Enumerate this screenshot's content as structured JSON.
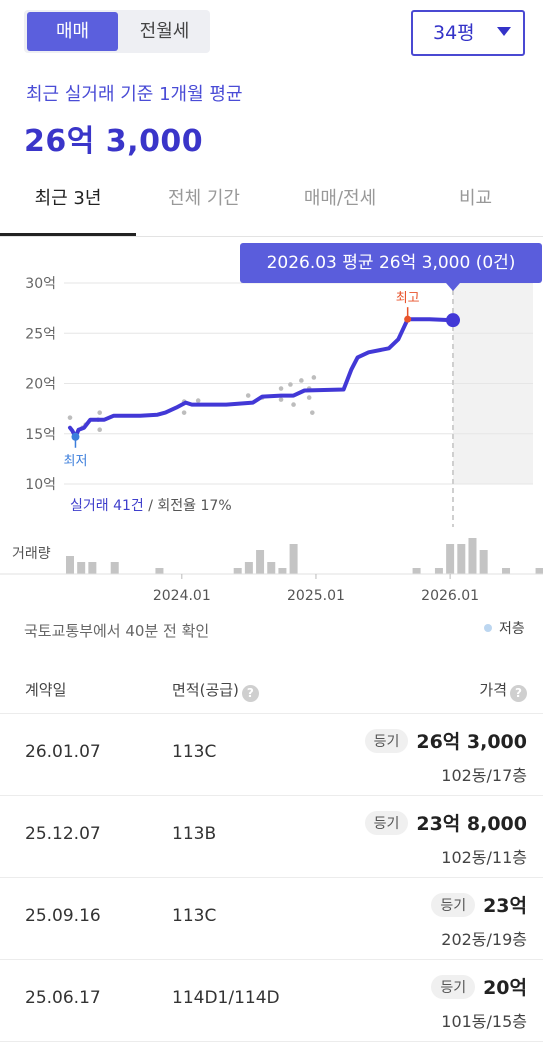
{
  "trade_toggle": {
    "sale": "매매",
    "rent": "전월세"
  },
  "size_select": {
    "value": "34평"
  },
  "summary": {
    "label": "최근 실거래 기준 1개월 평균",
    "price": "26억 3,000"
  },
  "tabs": [
    "최근 3년",
    "전체 기간",
    "매매/전세",
    "비교"
  ],
  "tooltip": "2026.03 평균 26억 3,000 (0건)",
  "chart_data": {
    "type": "line",
    "title": "",
    "ylabel": "",
    "ylim": [
      10,
      30
    ],
    "y_ticks": [
      "30억",
      "25억",
      "20억",
      "15억",
      "10억"
    ],
    "x_ticks": [
      "2024.01",
      "2025.01",
      "2026.01"
    ],
    "x_range": [
      "2023.03",
      "2026.03"
    ],
    "grid": true,
    "series": [
      {
        "values": [
          [
            0.0,
            15.6
          ],
          [
            0.15,
            15.3
          ],
          [
            0.35,
            14.7
          ],
          [
            0.55,
            15.4
          ],
          [
            0.9,
            15.6
          ],
          [
            1.3,
            16.4
          ],
          [
            2.2,
            16.4
          ],
          [
            2.8,
            16.8
          ],
          [
            4.5,
            16.8
          ],
          [
            5.6,
            16.9
          ],
          [
            6.1,
            17.1
          ],
          [
            6.8,
            17.6
          ],
          [
            7.4,
            18.1
          ],
          [
            7.8,
            17.9
          ],
          [
            10.0,
            17.9
          ],
          [
            11.7,
            18.1
          ],
          [
            12.3,
            18.7
          ],
          [
            13.5,
            18.8
          ],
          [
            14.3,
            18.8
          ],
          [
            15.0,
            19.3
          ],
          [
            17.5,
            19.4
          ],
          [
            18.0,
            21.4
          ],
          [
            18.4,
            22.6
          ],
          [
            19.1,
            23.1
          ],
          [
            20.4,
            23.5
          ],
          [
            21.0,
            24.4
          ],
          [
            21.6,
            26.4
          ],
          [
            22.0,
            26.4
          ],
          [
            23.0,
            26.4
          ],
          [
            24.5,
            26.3
          ]
        ]
      }
    ],
    "scatter_points": [
      [
        0,
        16.6
      ],
      [
        0.3,
        14.6
      ],
      [
        0.8,
        15.6
      ],
      [
        1.0,
        15.9
      ],
      [
        1.8,
        16.4
      ],
      [
        1.9,
        17.1
      ],
      [
        1.9,
        15.4
      ],
      [
        7.3,
        18.2
      ],
      [
        7.3,
        17.1
      ],
      [
        8.2,
        18.3
      ],
      [
        11.4,
        18.8
      ],
      [
        12.3,
        18.6
      ],
      [
        13.5,
        19.5
      ],
      [
        13.5,
        18.4
      ],
      [
        14.1,
        19.9
      ],
      [
        14.3,
        17.9
      ],
      [
        14.8,
        20.3
      ],
      [
        15.3,
        19.5
      ],
      [
        15.3,
        18.6
      ],
      [
        15.5,
        17.1
      ],
      [
        15.6,
        20.6
      ]
    ],
    "min_marker": {
      "label": "최저",
      "x": 0.35,
      "y": 14.7
    },
    "max_marker": {
      "label": "최고",
      "x": 21.6,
      "y": 26.4
    },
    "current_marker": {
      "x": 24.5,
      "y": 26.3
    },
    "volume_label": "거래량",
    "volume": [
      3,
      2,
      2,
      0,
      2,
      0,
      0,
      0,
      1,
      0,
      0,
      0,
      0,
      0,
      0,
      1,
      2,
      4,
      2,
      1,
      5,
      0,
      0,
      0,
      0,
      0,
      0,
      0,
      0,
      0,
      0,
      1,
      0,
      1,
      5,
      5,
      6,
      4,
      0,
      1,
      0,
      0,
      1,
      0,
      0,
      0,
      0
    ],
    "stats": {
      "count_text": "실거래 41건",
      "rate_text": " / 회전율 17%"
    }
  },
  "colors": {
    "accent": "#4238d6",
    "max": "#e8532b",
    "min": "#3c7edb"
  },
  "source_note": "국토교통부에서 40분 전 확인",
  "legend": {
    "low_floor": "저층"
  },
  "table": {
    "headers": {
      "date": "계약일",
      "area": "면적(공급)",
      "price": "가격"
    },
    "rows": [
      {
        "date": "26.01.07",
        "area": "113C",
        "badge": "등기",
        "price": "26억 3,000",
        "unit": "102동/17층"
      },
      {
        "date": "25.12.07",
        "area": "113B",
        "badge": "등기",
        "price": "23억 8,000",
        "unit": "102동/11층"
      },
      {
        "date": "25.09.16",
        "area": "113C",
        "badge": "등기",
        "price": "23억",
        "unit": "202동/19층"
      },
      {
        "date": "25.06.17",
        "area": "114D1/114D",
        "badge": "등기",
        "price": "20억",
        "unit": "101동/15층"
      }
    ]
  }
}
